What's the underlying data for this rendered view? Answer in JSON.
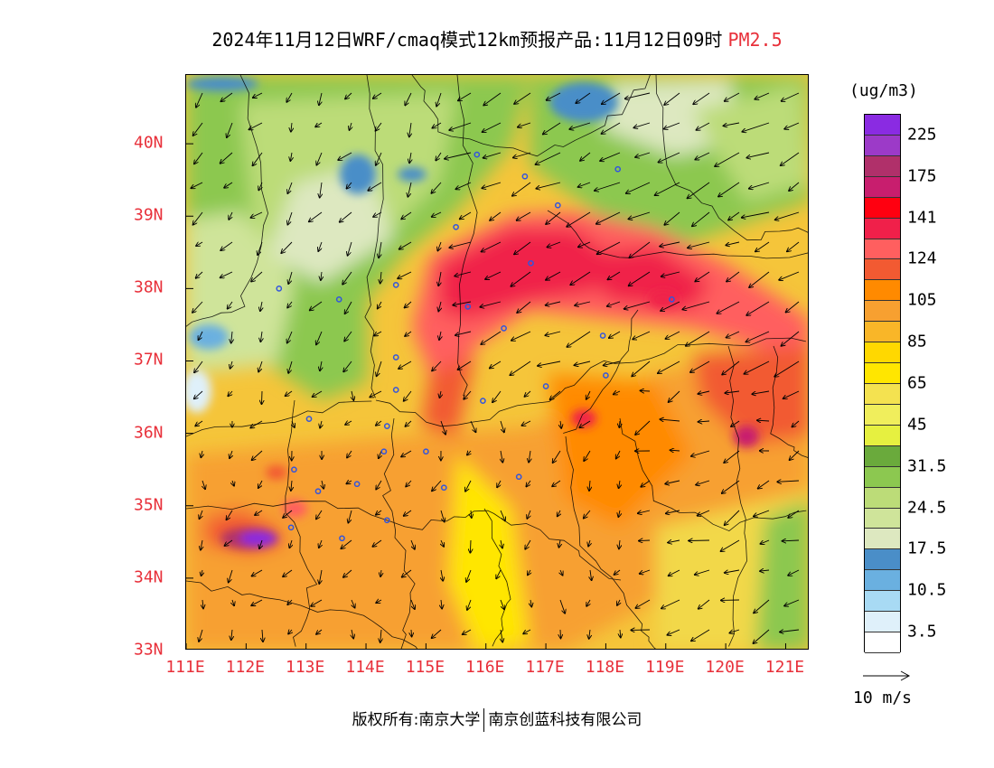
{
  "title": {
    "main": "2024年11月12日WRF/cmaq模式12km预报产品:11月12日09时",
    "species": "PM2.5"
  },
  "colors": {
    "species": "#e8303a",
    "tick_labels": "#e8303a",
    "site_markers": "#3355dd"
  },
  "map": {
    "lon_range": [
      111,
      121.4
    ],
    "lat_range": [
      33,
      40.95
    ],
    "x_ticks": [
      "111E",
      "112E",
      "113E",
      "114E",
      "115E",
      "116E",
      "117E",
      "118E",
      "119E",
      "120E",
      "121E"
    ],
    "y_ticks": [
      "33N",
      "34N",
      "35N",
      "36N",
      "37N",
      "38N",
      "39N",
      "40N"
    ]
  },
  "legend": {
    "unit": "(ug/m3)",
    "bins": [
      {
        "color": "#8a2be2",
        "label": "225"
      },
      {
        "color": "#9c3ac8",
        "label": ""
      },
      {
        "color": "#b0306a",
        "label": "175"
      },
      {
        "color": "#c81e6e",
        "label": ""
      },
      {
        "color": "#ff0010",
        "label": "141"
      },
      {
        "color": "#f0204a",
        "label": ""
      },
      {
        "color": "#ff5f5f",
        "label": "124"
      },
      {
        "color": "#f25a32",
        "label": ""
      },
      {
        "color": "#ff8a00",
        "label": "105"
      },
      {
        "color": "#f7a030",
        "label": ""
      },
      {
        "color": "#f9b628",
        "label": "85"
      },
      {
        "color": "#ffd800",
        "label": ""
      },
      {
        "color": "#ffe600",
        "label": "65"
      },
      {
        "color": "#f4e250",
        "label": ""
      },
      {
        "color": "#f0ee5c",
        "label": "45"
      },
      {
        "color": "#e6f040",
        "label": ""
      },
      {
        "color": "#6aaa3c",
        "label": "31.5"
      },
      {
        "color": "#8cc850",
        "label": ""
      },
      {
        "color": "#bcdc78",
        "label": "24.5"
      },
      {
        "color": "#cfe49a",
        "label": ""
      },
      {
        "color": "#dde8c0",
        "label": "17.5"
      },
      {
        "color": "#4a8ec8",
        "label": ""
      },
      {
        "color": "#6ab0e0",
        "label": "10.5"
      },
      {
        "color": "#a8daf4",
        "label": ""
      },
      {
        "color": "#dff0fa",
        "label": "3.5"
      },
      {
        "color": "#ffffff",
        "label": ""
      }
    ]
  },
  "wind_reference": {
    "label": "10 m/s"
  },
  "copyright": {
    "owner_label": "版权所有:",
    "org1": "南京大学",
    "org2": "南京创蓝科技有限公司"
  },
  "sites": [
    [
      115.85,
      39.85
    ],
    [
      116.65,
      39.55
    ],
    [
      117.2,
      39.15
    ],
    [
      118.2,
      39.65
    ],
    [
      115.5,
      38.85
    ],
    [
      116.75,
      38.35
    ],
    [
      114.5,
      38.05
    ],
    [
      113.55,
      37.85
    ],
    [
      112.55,
      38.0
    ],
    [
      115.7,
      37.75
    ],
    [
      116.3,
      37.45
    ],
    [
      117.95,
      37.35
    ],
    [
      119.1,
      37.85
    ],
    [
      114.5,
      37.05
    ],
    [
      114.5,
      36.6
    ],
    [
      114.35,
      36.1
    ],
    [
      115.95,
      36.45
    ],
    [
      117.0,
      36.65
    ],
    [
      118.0,
      36.8
    ],
    [
      113.05,
      36.2
    ],
    [
      114.3,
      35.75
    ],
    [
      115.0,
      35.75
    ],
    [
      115.3,
      35.25
    ],
    [
      116.55,
      35.4
    ],
    [
      113.85,
      35.3
    ],
    [
      112.8,
      35.5
    ],
    [
      113.2,
      35.2
    ],
    [
      112.75,
      34.7
    ],
    [
      113.6,
      34.55
    ],
    [
      114.35,
      34.8
    ]
  ]
}
